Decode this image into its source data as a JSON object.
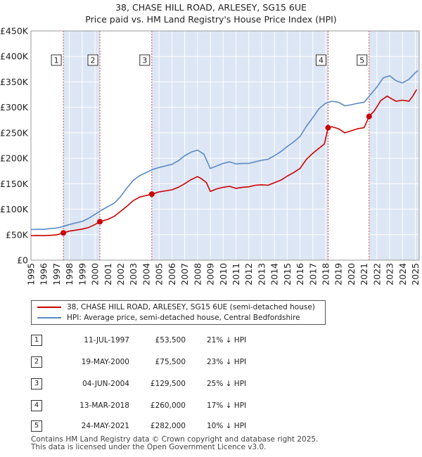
{
  "chart_data": {
    "type": "line",
    "title_line1": "38, CHASE HILL ROAD, ARLESEY, SG15 6UE",
    "title_line2": "Price paid vs. HM Land Registry's House Price Index (HPI)",
    "ylim": [
      0,
      450000
    ],
    "xlim": [
      1995,
      2025.3
    ],
    "y_ticks": [
      {
        "value": 0,
        "label": "£0"
      },
      {
        "value": 50000,
        "label": "£50K"
      },
      {
        "value": 100000,
        "label": "£100K"
      },
      {
        "value": 150000,
        "label": "£150K"
      },
      {
        "value": 200000,
        "label": "£200K"
      },
      {
        "value": 250000,
        "label": "£250K"
      },
      {
        "value": 300000,
        "label": "£300K"
      },
      {
        "value": 350000,
        "label": "£350K"
      },
      {
        "value": 400000,
        "label": "£400K"
      },
      {
        "value": 450000,
        "label": "£450K"
      }
    ],
    "x_ticks": [
      "1995",
      "1996",
      "1997",
      "1998",
      "1999",
      "2000",
      "2001",
      "2002",
      "2003",
      "2004",
      "2005",
      "2006",
      "2007",
      "2008",
      "2009",
      "2010",
      "2011",
      "2012",
      "2013",
      "2014",
      "2015",
      "2016",
      "2017",
      "2018",
      "2019",
      "2020",
      "2021",
      "2022",
      "2023",
      "2024",
      "2025"
    ],
    "series": [
      {
        "name": "38, CHASE HILL ROAD, ARLESEY, SG15 6UE (semi-detached house)",
        "color": "#cc0000",
        "points": [
          [
            1995.0,
            48000
          ],
          [
            1995.5,
            48500
          ],
          [
            1996.0,
            48000
          ],
          [
            1996.5,
            48700
          ],
          [
            1997.0,
            49500
          ],
          [
            1997.53,
            53500
          ],
          [
            1998.0,
            57000
          ],
          [
            1998.5,
            59000
          ],
          [
            1999.0,
            61000
          ],
          [
            1999.5,
            64000
          ],
          [
            2000.0,
            70000
          ],
          [
            2000.38,
            75500
          ],
          [
            2001.0,
            80000
          ],
          [
            2001.5,
            86000
          ],
          [
            2002.0,
            96000
          ],
          [
            2002.5,
            106000
          ],
          [
            2003.0,
            117000
          ],
          [
            2003.5,
            124000
          ],
          [
            2004.0,
            127000
          ],
          [
            2004.43,
            129500
          ],
          [
            2005.0,
            134000
          ],
          [
            2005.5,
            136000
          ],
          [
            2006.0,
            138000
          ],
          [
            2006.5,
            143000
          ],
          [
            2007.0,
            150000
          ],
          [
            2007.5,
            158000
          ],
          [
            2008.0,
            164000
          ],
          [
            2008.3,
            160000
          ],
          [
            2008.7,
            152000
          ],
          [
            2009.0,
            135000
          ],
          [
            2009.5,
            140000
          ],
          [
            2010.0,
            143000
          ],
          [
            2010.5,
            145000
          ],
          [
            2011.0,
            141000
          ],
          [
            2011.5,
            143000
          ],
          [
            2012.0,
            144000
          ],
          [
            2012.5,
            147000
          ],
          [
            2013.0,
            148000
          ],
          [
            2013.5,
            147000
          ],
          [
            2014.0,
            152000
          ],
          [
            2014.5,
            157000
          ],
          [
            2015.0,
            165000
          ],
          [
            2015.5,
            172000
          ],
          [
            2016.0,
            180000
          ],
          [
            2016.5,
            198000
          ],
          [
            2017.0,
            210000
          ],
          [
            2017.5,
            220000
          ],
          [
            2017.9,
            228000
          ],
          [
            2018.19,
            260000
          ],
          [
            2018.5,
            262000
          ],
          [
            2019.0,
            258000
          ],
          [
            2019.5,
            250000
          ],
          [
            2020.0,
            254000
          ],
          [
            2020.5,
            258000
          ],
          [
            2021.0,
            260000
          ],
          [
            2021.39,
            282000
          ],
          [
            2021.8,
            293000
          ],
          [
            2022.3,
            313000
          ],
          [
            2022.8,
            322000
          ],
          [
            2023.2,
            316000
          ],
          [
            2023.5,
            312000
          ],
          [
            2024.0,
            314000
          ],
          [
            2024.5,
            312000
          ],
          [
            2024.8,
            322000
          ],
          [
            2025.1,
            335000
          ]
        ]
      },
      {
        "name": "HPI: Average price, semi-detached house, Central Bedfordshire",
        "color": "#5a8ac6",
        "points": [
          [
            1995.0,
            60000
          ],
          [
            1995.5,
            60500
          ],
          [
            1996.0,
            60500
          ],
          [
            1996.5,
            62000
          ],
          [
            1997.0,
            63000
          ],
          [
            1997.5,
            66000
          ],
          [
            1998.0,
            70000
          ],
          [
            1998.5,
            73000
          ],
          [
            1999.0,
            76000
          ],
          [
            1999.5,
            82000
          ],
          [
            2000.0,
            90000
          ],
          [
            2000.5,
            98000
          ],
          [
            2001.0,
            105000
          ],
          [
            2001.5,
            112000
          ],
          [
            2002.0,
            125000
          ],
          [
            2002.5,
            142000
          ],
          [
            2003.0,
            157000
          ],
          [
            2003.5,
            166000
          ],
          [
            2004.0,
            172000
          ],
          [
            2004.5,
            178000
          ],
          [
            2005.0,
            182000
          ],
          [
            2005.5,
            185000
          ],
          [
            2006.0,
            188000
          ],
          [
            2006.5,
            195000
          ],
          [
            2007.0,
            205000
          ],
          [
            2007.5,
            212000
          ],
          [
            2008.0,
            216000
          ],
          [
            2008.5,
            208000
          ],
          [
            2009.0,
            180000
          ],
          [
            2009.5,
            185000
          ],
          [
            2010.0,
            190000
          ],
          [
            2010.5,
            193000
          ],
          [
            2011.0,
            189000
          ],
          [
            2011.5,
            190000
          ],
          [
            2012.0,
            190000
          ],
          [
            2012.5,
            193000
          ],
          [
            2013.0,
            196000
          ],
          [
            2013.5,
            198000
          ],
          [
            2014.0,
            205000
          ],
          [
            2014.5,
            213000
          ],
          [
            2015.0,
            223000
          ],
          [
            2015.5,
            232000
          ],
          [
            2016.0,
            243000
          ],
          [
            2016.5,
            263000
          ],
          [
            2017.0,
            280000
          ],
          [
            2017.5,
            298000
          ],
          [
            2018.0,
            308000
          ],
          [
            2018.5,
            312000
          ],
          [
            2019.0,
            310000
          ],
          [
            2019.5,
            303000
          ],
          [
            2020.0,
            305000
          ],
          [
            2020.5,
            308000
          ],
          [
            2021.0,
            310000
          ],
          [
            2021.5,
            325000
          ],
          [
            2022.0,
            340000
          ],
          [
            2022.5,
            358000
          ],
          [
            2023.0,
            362000
          ],
          [
            2023.5,
            352000
          ],
          [
            2024.0,
            348000
          ],
          [
            2024.5,
            355000
          ],
          [
            2025.0,
            368000
          ],
          [
            2025.2,
            372000
          ]
        ]
      }
    ],
    "sale_points": [
      {
        "n": "1",
        "x": 1997.53,
        "y": 53500
      },
      {
        "n": "2",
        "x": 2000.38,
        "y": 75500
      },
      {
        "n": "3",
        "x": 2004.43,
        "y": 129500
      },
      {
        "n": "4",
        "x": 2018.19,
        "y": 260000
      },
      {
        "n": "5",
        "x": 2021.39,
        "y": 282000
      }
    ],
    "shaded_ranges": [
      [
        1997.53,
        2000.38
      ],
      [
        2004.43,
        2018.19
      ],
      [
        2021.39,
        2025.3
      ]
    ],
    "marker_color": "#cc0000",
    "shade_color": "#dde6f4"
  },
  "legend": {
    "series1": "38, CHASE HILL ROAD, ARLESEY, SG15 6UE (semi-detached house)",
    "series2": "HPI: Average price, semi-detached house, Central Bedfordshire"
  },
  "sales": [
    {
      "n": "1",
      "date": "11-JUL-1997",
      "price": "£53,500",
      "hpi": "21% ↓ HPI"
    },
    {
      "n": "2",
      "date": "19-MAY-2000",
      "price": "£75,500",
      "hpi": "23% ↓ HPI"
    },
    {
      "n": "3",
      "date": "04-JUN-2004",
      "price": "£129,500",
      "hpi": "25% ↓ HPI"
    },
    {
      "n": "4",
      "date": "13-MAR-2018",
      "price": "£260,000",
      "hpi": "17% ↓ HPI"
    },
    {
      "n": "5",
      "date": "24-MAY-2021",
      "price": "£282,000",
      "hpi": "10% ↓ HPI"
    }
  ],
  "footer": {
    "line1": "Contains HM Land Registry data © Crown copyright and database right 2025.",
    "line2": "This data is licensed under the Open Government Licence v3.0."
  }
}
